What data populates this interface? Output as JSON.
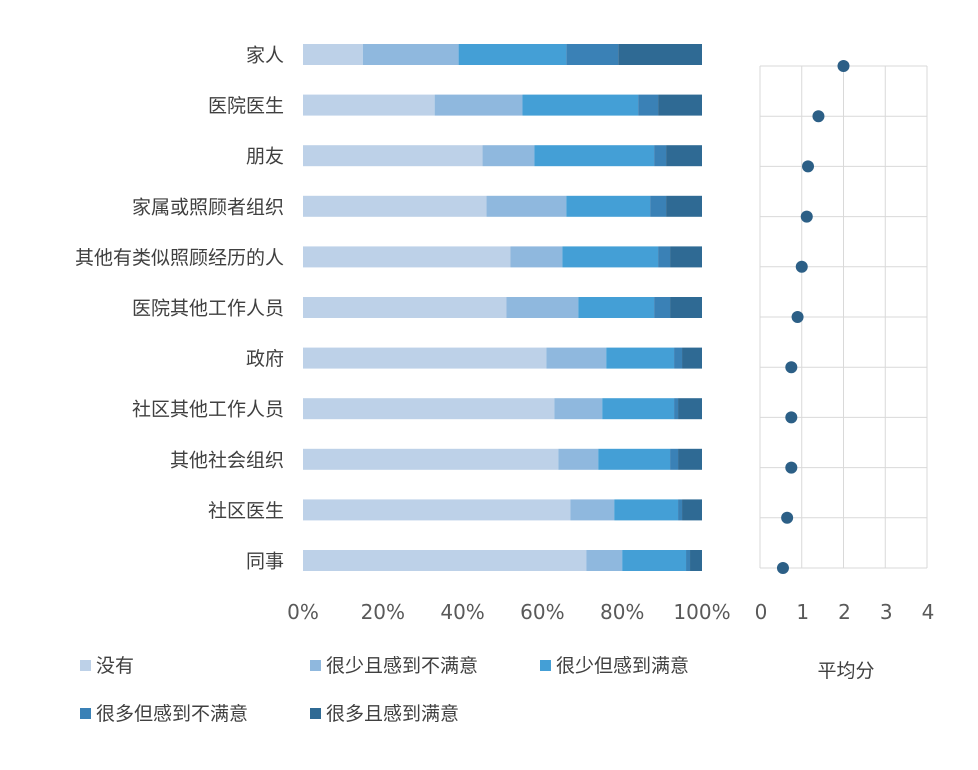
{
  "chart_data": [
    {
      "type": "bar",
      "orientation": "horizontal",
      "stacked": "percent",
      "categories": [
        "家人",
        "医院医生",
        "朋友",
        "家属或照顾者组织",
        "其他有类似照顾经历的人",
        "医院其他工作人员",
        "政府",
        "社区其他工作人员",
        "其他社会组织",
        "社区医生",
        "同事"
      ],
      "series": [
        {
          "name": "没有",
          "color": "#bdd1e8",
          "values": [
            15,
            33,
            45,
            46,
            52,
            51,
            61,
            63,
            64,
            67,
            71
          ]
        },
        {
          "name": "很少且感到不满意",
          "color": "#8fb8de",
          "values": [
            24,
            22,
            13,
            20,
            13,
            18,
            15,
            12,
            10,
            11,
            9
          ]
        },
        {
          "name": "很少但感到满意",
          "color": "#449fd6",
          "values": [
            27,
            29,
            30,
            21,
            24,
            19,
            17,
            18,
            18,
            16,
            16
          ]
        },
        {
          "name": "很多但感到不满意",
          "color": "#3a81b6",
          "values": [
            13,
            5,
            3,
            4,
            3,
            4,
            2,
            1,
            2,
            1,
            1
          ]
        },
        {
          "name": "很多且感到满意",
          "color": "#2f6a94",
          "values": [
            21,
            11,
            9,
            9,
            8,
            8,
            5,
            6,
            6,
            5,
            3
          ]
        }
      ],
      "x_ticks": [
        "0%",
        "20%",
        "40%",
        "60%",
        "80%",
        "100%"
      ],
      "xlim": [
        0,
        100
      ],
      "grid": false,
      "legend_position": "bottom"
    },
    {
      "type": "scatter",
      "categories": [
        "家人",
        "医院医生",
        "朋友",
        "家属或照顾者组织",
        "其他有类似照顾经历的人",
        "医院其他工作人员",
        "政府",
        "社区其他工作人员",
        "其他社会组织",
        "社区医生",
        "同事"
      ],
      "values": [
        2.0,
        1.4,
        1.15,
        1.12,
        1.0,
        0.9,
        0.75,
        0.75,
        0.75,
        0.65,
        0.55
      ],
      "marker_color": "#2c5f86",
      "x_ticks": [
        "0",
        "1",
        "2",
        "3",
        "4"
      ],
      "xlim": [
        0,
        4
      ],
      "xlabel": "平均分",
      "grid": true
    }
  ]
}
